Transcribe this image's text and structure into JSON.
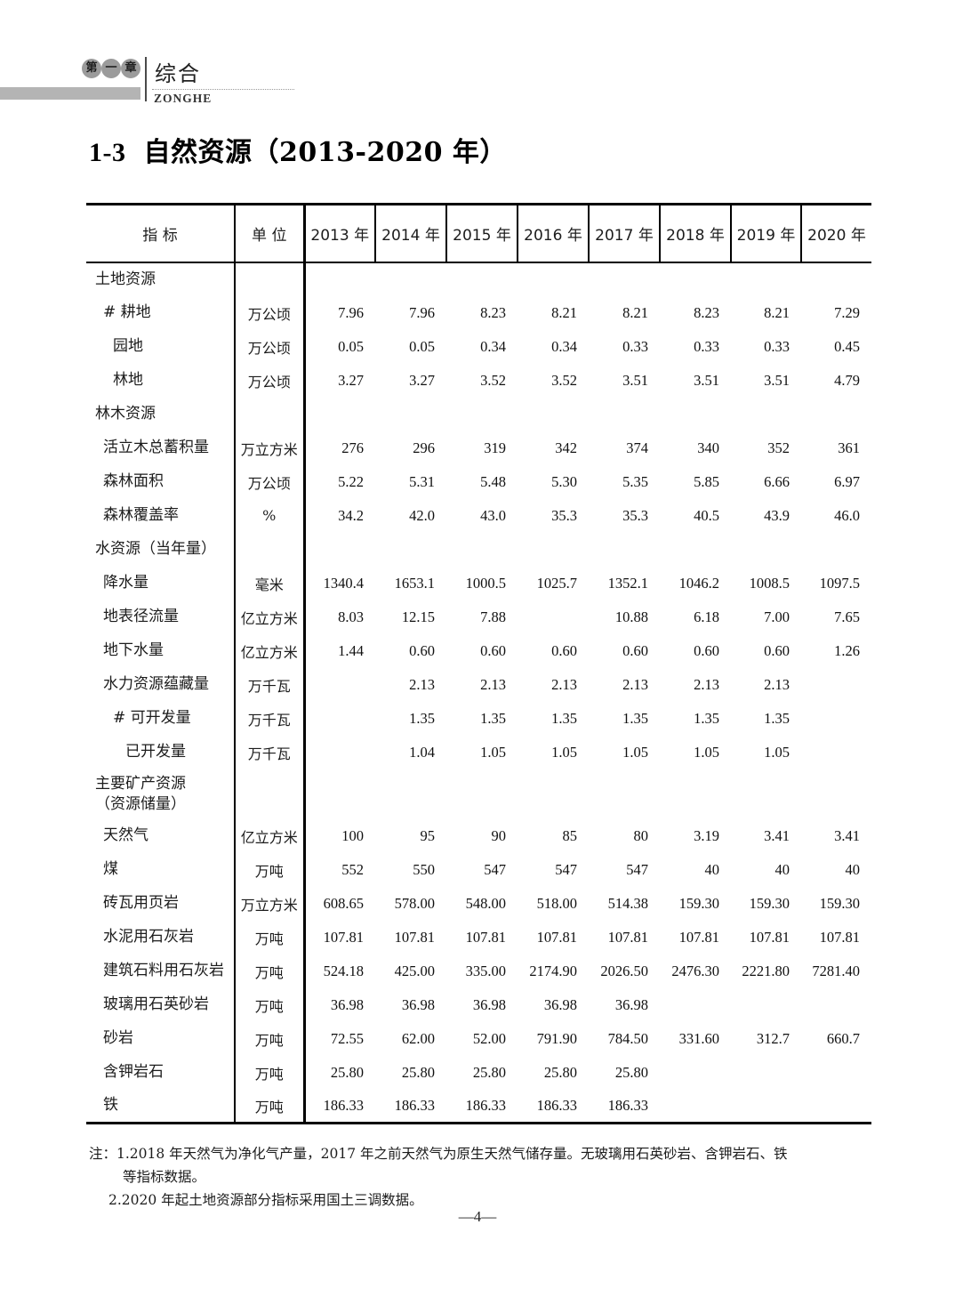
{
  "page": {
    "chapter_badge_chars": [
      "第",
      "一",
      "章"
    ],
    "chapter_title": "综合",
    "chapter_subtitle": "ZONGHE",
    "title_number": "1-3",
    "title_text": "自然资源（2013-2020 年）",
    "page_number": "—4—"
  },
  "table": {
    "col_headers": [
      "指 标",
      "单 位",
      "2013 年",
      "2014 年",
      "2015 年",
      "2016 年",
      "2017 年",
      "2018 年",
      "2019 年",
      "2020 年"
    ],
    "rows": [
      {
        "label": "土地资源",
        "unit": "",
        "indent": 0,
        "section": true,
        "values": [
          "",
          "",
          "",
          "",
          "",
          "",
          "",
          ""
        ]
      },
      {
        "label": "# 耕地",
        "unit": "万公顷",
        "indent": 1,
        "values": [
          "7.96",
          "7.96",
          "8.23",
          "8.21",
          "8.21",
          "8.23",
          "8.21",
          "7.29"
        ]
      },
      {
        "label": "园地",
        "unit": "万公顷",
        "indent": 2,
        "values": [
          "0.05",
          "0.05",
          "0.34",
          "0.34",
          "0.33",
          "0.33",
          "0.33",
          "0.45"
        ]
      },
      {
        "label": "林地",
        "unit": "万公顷",
        "indent": 2,
        "values": [
          "3.27",
          "3.27",
          "3.52",
          "3.52",
          "3.51",
          "3.51",
          "3.51",
          "4.79"
        ]
      },
      {
        "label": "林木资源",
        "unit": "",
        "indent": 0,
        "section": true,
        "values": [
          "",
          "",
          "",
          "",
          "",
          "",
          "",
          ""
        ]
      },
      {
        "label": "活立木总蓄积量",
        "unit": "万立方米",
        "indent": 1,
        "values": [
          "276",
          "296",
          "319",
          "342",
          "374",
          "340",
          "352",
          "361"
        ]
      },
      {
        "label": "森林面积",
        "unit": "万公顷",
        "indent": 1,
        "values": [
          "5.22",
          "5.31",
          "5.48",
          "5.30",
          "5.35",
          "5.85",
          "6.66",
          "6.97"
        ]
      },
      {
        "label": "森林覆盖率",
        "unit": "%",
        "indent": 1,
        "values": [
          "34.2",
          "42.0",
          "43.0",
          "35.3",
          "35.3",
          "40.5",
          "43.9",
          "46.0"
        ]
      },
      {
        "label": "水资源（当年量）",
        "unit": "",
        "indent": 0,
        "section": true,
        "values": [
          "",
          "",
          "",
          "",
          "",
          "",
          "",
          ""
        ]
      },
      {
        "label": "降水量",
        "unit": "毫米",
        "indent": 1,
        "values": [
          "1340.4",
          "1653.1",
          "1000.5",
          "1025.7",
          "1352.1",
          "1046.2",
          "1008.5",
          "1097.5"
        ]
      },
      {
        "label": "地表径流量",
        "unit": "亿立方米",
        "indent": 1,
        "values": [
          "8.03",
          "12.15",
          "7.88",
          "",
          "10.88",
          "6.18",
          "7.00",
          "7.65"
        ]
      },
      {
        "label": "地下水量",
        "unit": "亿立方米",
        "indent": 1,
        "values": [
          "1.44",
          "0.60",
          "0.60",
          "0.60",
          "0.60",
          "0.60",
          "0.60",
          "1.26"
        ]
      },
      {
        "label": "水力资源蕴藏量",
        "unit": "万千瓦",
        "indent": 1,
        "values": [
          "",
          "2.13",
          "2.13",
          "2.13",
          "2.13",
          "2.13",
          "2.13",
          ""
        ]
      },
      {
        "label": "# 可开发量",
        "unit": "万千瓦",
        "indent": 2,
        "values": [
          "",
          "1.35",
          "1.35",
          "1.35",
          "1.35",
          "1.35",
          "1.35",
          ""
        ]
      },
      {
        "label": "已开发量",
        "unit": "万千瓦",
        "indent": 3,
        "values": [
          "",
          "1.04",
          "1.05",
          "1.05",
          "1.05",
          "1.05",
          "1.05",
          ""
        ]
      },
      {
        "label": "主要矿产资源\n（资源储量）",
        "unit": "",
        "indent": 0,
        "section": true,
        "tall": true,
        "values": [
          "",
          "",
          "",
          "",
          "",
          "",
          "",
          ""
        ]
      },
      {
        "label": "天然气",
        "unit": "亿立方米",
        "indent": 1,
        "values": [
          "100",
          "95",
          "90",
          "85",
          "80",
          "3.19",
          "3.41",
          "3.41"
        ]
      },
      {
        "label": "煤",
        "unit": "万吨",
        "indent": 1,
        "values": [
          "552",
          "550",
          "547",
          "547",
          "547",
          "40",
          "40",
          "40"
        ]
      },
      {
        "label": "砖瓦用页岩",
        "unit": "万立方米",
        "indent": 1,
        "values": [
          "608.65",
          "578.00",
          "548.00",
          "518.00",
          "514.38",
          "159.30",
          "159.30",
          "159.30"
        ]
      },
      {
        "label": "水泥用石灰岩",
        "unit": "万吨",
        "indent": 1,
        "values": [
          "107.81",
          "107.81",
          "107.81",
          "107.81",
          "107.81",
          "107.81",
          "107.81",
          "107.81"
        ]
      },
      {
        "label": "建筑石料用石灰岩",
        "unit": "万吨",
        "indent": 1,
        "values": [
          "524.18",
          "425.00",
          "335.00",
          "2174.90",
          "2026.50",
          "2476.30",
          "2221.80",
          "7281.40"
        ]
      },
      {
        "label": "玻璃用石英砂岩",
        "unit": "万吨",
        "indent": 1,
        "values": [
          "36.98",
          "36.98",
          "36.98",
          "36.98",
          "36.98",
          "",
          "",
          ""
        ]
      },
      {
        "label": "砂岩",
        "unit": "万吨",
        "indent": 1,
        "values": [
          "72.55",
          "62.00",
          "52.00",
          "791.90",
          "784.50",
          "331.60",
          "312.7",
          "660.7"
        ]
      },
      {
        "label": "含钾岩石",
        "unit": "万吨",
        "indent": 1,
        "values": [
          "25.80",
          "25.80",
          "25.80",
          "25.80",
          "25.80",
          "",
          "",
          ""
        ]
      },
      {
        "label": "铁",
        "unit": "万吨",
        "indent": 1,
        "values": [
          "186.33",
          "186.33",
          "186.33",
          "186.33",
          "186.33",
          "",
          "",
          ""
        ]
      }
    ]
  },
  "notes": {
    "line1": "注：1.2018 年天然气为净化气产量，2017 年之前天然气为原生天然气储存量。无玻璃用石英砂岩、含钾岩石、铁",
    "line2": "等指标数据。",
    "line3": "2.2020 年起土地资源部分指标采用国土三调数据。"
  }
}
